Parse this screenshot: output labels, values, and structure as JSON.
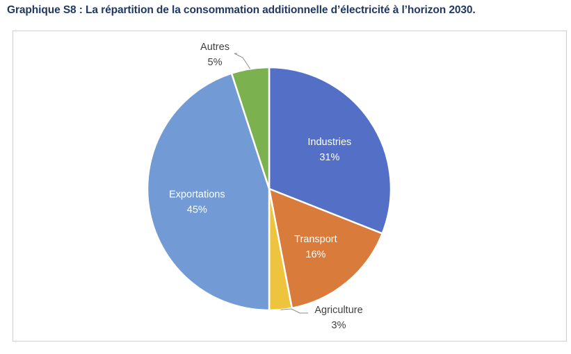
{
  "chart_data": {
    "type": "pie",
    "title": "Graphique S8 : La répartition de la consommation additionnelle d’électricité à l’horizon 2030.",
    "slices": [
      {
        "label": "Industries",
        "value": 31,
        "display": "31%",
        "color": "#5470c6",
        "label_inside": true
      },
      {
        "label": "Transport",
        "value": 16,
        "display": "16%",
        "color": "#d97b3b",
        "label_inside": true
      },
      {
        "label": "Agriculture",
        "value": 3,
        "display": "3%",
        "color": "#eec43f",
        "label_inside": false
      },
      {
        "label": "Exportations",
        "value": 45,
        "display": "45%",
        "color": "#729bd6",
        "label_inside": true
      },
      {
        "label": "Autres",
        "value": 5,
        "display": "5%",
        "color": "#7cb150",
        "label_inside": false
      }
    ],
    "start": "top",
    "direction": "clockwise",
    "legend": "none"
  }
}
